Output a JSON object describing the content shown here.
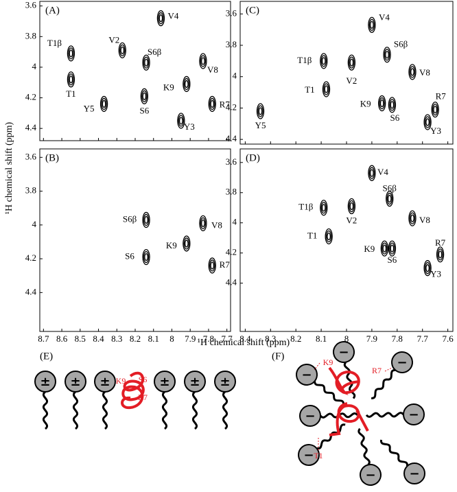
{
  "axis_labels": {
    "x": "¹H chemical shift (ppm)",
    "y": "¹H chemical shift (ppm)"
  },
  "chart_data": [
    {
      "type": "scatter",
      "title": "(A)",
      "xlim": [
        8.72,
        7.68
      ],
      "ylim": [
        4.48,
        3.57
      ],
      "xticks": [
        8.7,
        8.6,
        8.5,
        8.4,
        8.3,
        8.2,
        8.1,
        8.0,
        7.9,
        7.8,
        7.7
      ],
      "yticks": [
        3.6,
        3.8,
        4.0,
        4.2,
        4.4
      ],
      "xtick_labels": false,
      "labels": [
        "T1β",
        "T1",
        "V2",
        "S6β",
        "V4",
        "Y5",
        "S6",
        "K9",
        "V8",
        "R7",
        "Y3"
      ],
      "x": [
        8.55,
        8.55,
        8.27,
        8.14,
        8.06,
        8.37,
        8.15,
        7.92,
        7.83,
        7.78,
        7.95
      ],
      "values": [
        3.91,
        4.08,
        3.89,
        3.97,
        3.68,
        4.24,
        4.19,
        4.11,
        3.96,
        4.24,
        4.35
      ]
    },
    {
      "type": "scatter",
      "title": "(B)",
      "xlim": [
        8.72,
        7.68
      ],
      "ylim": [
        4.63,
        3.55
      ],
      "xticks": [
        8.7,
        8.6,
        8.5,
        8.4,
        8.3,
        8.2,
        8.1,
        8.0,
        7.9,
        7.8,
        7.7
      ],
      "yticks": [
        3.6,
        3.8,
        4.0,
        4.2,
        4.4
      ],
      "xtick_labels": true,
      "labels": [
        "S6β",
        "V8",
        "K9",
        "S6",
        "R7"
      ],
      "x": [
        8.14,
        7.83,
        7.92,
        8.14,
        7.78
      ],
      "values": [
        3.97,
        3.99,
        4.11,
        4.19,
        4.24
      ]
    },
    {
      "type": "scatter",
      "title": "(C)",
      "xlim": [
        8.42,
        7.58
      ],
      "ylim": [
        4.43,
        3.52
      ],
      "xticks": [
        8.4,
        8.3,
        8.2,
        8.1,
        8.0,
        7.9,
        7.8,
        7.7,
        7.6
      ],
      "yticks": [
        3.6,
        3.8,
        4.0,
        4.2,
        4.4
      ],
      "xtick_labels": false,
      "labels": [
        "V4",
        "T1β",
        "V2",
        "S6β",
        "V8",
        "T1",
        "R7",
        "K9",
        "S6",
        "Y5",
        "Y3"
      ],
      "x": [
        7.9,
        8.09,
        7.98,
        7.84,
        7.74,
        8.08,
        7.65,
        7.86,
        7.82,
        8.34,
        7.68
      ],
      "values": [
        3.67,
        3.9,
        3.91,
        3.86,
        3.97,
        4.08,
        4.21,
        4.17,
        4.18,
        4.22,
        4.29
      ]
    },
    {
      "type": "scatter",
      "title": "(D)",
      "xlim": [
        8.42,
        7.58
      ],
      "ylim": [
        4.72,
        3.51
      ],
      "xticks": [
        8.4,
        8.3,
        8.2,
        8.1,
        8.0,
        7.9,
        7.8,
        7.7,
        7.6
      ],
      "yticks": [
        3.6,
        3.8,
        4.0,
        4.2,
        4.4
      ],
      "xtick_labels": true,
      "labels": [
        "V4",
        "S6β",
        "T1β",
        "V2",
        "V8",
        "T1",
        "R7",
        "K9",
        "S6",
        "Y3"
      ],
      "x": [
        7.9,
        7.83,
        8.09,
        7.98,
        7.74,
        8.07,
        7.63,
        7.85,
        7.82,
        7.68
      ],
      "values": [
        3.67,
        3.84,
        3.9,
        3.89,
        3.97,
        4.09,
        4.21,
        4.17,
        4.17,
        4.3
      ]
    }
  ],
  "diagrams": {
    "E": {
      "label": "(E)",
      "head_symbol": "±",
      "residues": [
        "K9",
        "S6",
        "R7"
      ]
    },
    "F": {
      "label": "(F)",
      "head_symbol": "−",
      "residues": [
        "K9",
        "R7",
        "T1"
      ]
    }
  }
}
